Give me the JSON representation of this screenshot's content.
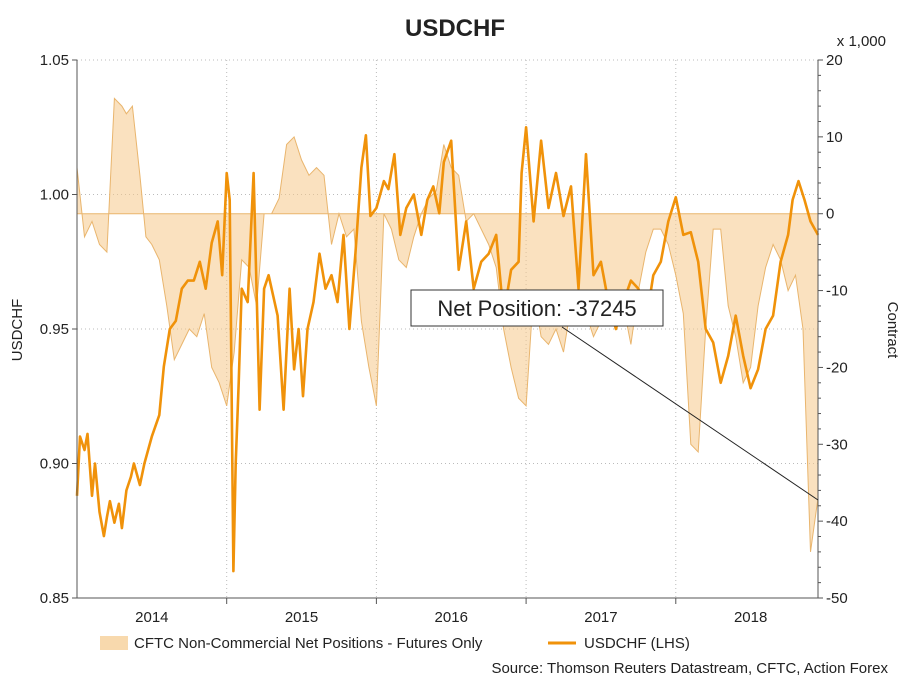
{
  "chart_data": {
    "type": "line",
    "title": "USDCHF",
    "left_axis": {
      "label": "USDCHF",
      "min": 0.85,
      "max": 1.05,
      "ticks": [
        "0.85",
        "0.90",
        "0.95",
        "1.00",
        "1.05"
      ],
      "tick_values": [
        0.85,
        0.9,
        0.95,
        1.0,
        1.05
      ]
    },
    "right_axis": {
      "label": "Contract",
      "unit_note": "x 1,000",
      "min": -50,
      "max": 20,
      "ticks": [
        "-50",
        "-40",
        "-30",
        "-20",
        "-10",
        "0",
        "10",
        "20"
      ],
      "tick_values": [
        -50,
        -40,
        -30,
        -20,
        -10,
        0,
        10,
        20
      ]
    },
    "x_axis": {
      "min": 2013.5,
      "max": 2018.45,
      "labels": [
        "2014",
        "2015",
        "2016",
        "2017",
        "2018"
      ],
      "label_positions": [
        2014.0,
        2015.0,
        2016.0,
        2017.0,
        2018.0
      ],
      "year_boundaries": [
        2014.5,
        2015.5,
        2016.5,
        2017.5
      ]
    },
    "grid": true,
    "legend_position": "bottom",
    "series": [
      {
        "name": "CFTC Non-Commercial Net Positions - Futures Only",
        "kind": "area",
        "axis": "right",
        "color": "#f5c98a",
        "x": [
          2013.5,
          2013.55,
          2013.6,
          2013.65,
          2013.7,
          2013.75,
          2013.8,
          2013.83,
          2013.87,
          2013.92,
          2013.96,
          2014.0,
          2014.05,
          2014.1,
          2014.15,
          2014.2,
          2014.25,
          2014.3,
          2014.35,
          2014.4,
          2014.45,
          2014.5,
          2014.55,
          2014.6,
          2014.65,
          2014.7,
          2014.75,
          2014.8,
          2014.85,
          2014.9,
          2014.95,
          2015.0,
          2015.05,
          2015.1,
          2015.15,
          2015.2,
          2015.25,
          2015.3,
          2015.35,
          2015.4,
          2015.45,
          2015.5,
          2015.55,
          2015.6,
          2015.65,
          2015.7,
          2015.75,
          2015.8,
          2015.85,
          2015.9,
          2015.95,
          2016.0,
          2016.05,
          2016.1,
          2016.15,
          2016.2,
          2016.25,
          2016.3,
          2016.35,
          2016.4,
          2016.45,
          2016.5,
          2016.55,
          2016.6,
          2016.65,
          2016.7,
          2016.75,
          2016.8,
          2016.85,
          2016.9,
          2016.95,
          2017.0,
          2017.05,
          2017.1,
          2017.15,
          2017.2,
          2017.25,
          2017.3,
          2017.35,
          2017.4,
          2017.45,
          2017.5,
          2017.55,
          2017.6,
          2017.65,
          2017.7,
          2017.75,
          2017.8,
          2017.85,
          2017.9,
          2017.95,
          2018.0,
          2018.05,
          2018.1,
          2018.15,
          2018.2,
          2018.25,
          2018.3,
          2018.35,
          2018.4,
          2018.45
        ],
        "values": [
          6,
          -3,
          -1,
          -4,
          -5,
          15,
          14,
          13,
          14,
          5,
          -3,
          -4,
          -6,
          -12,
          -19,
          -17,
          -15,
          -16,
          -13,
          -20,
          -22,
          -25,
          -18,
          -6,
          -7,
          -12,
          0,
          0,
          2,
          9,
          10,
          7,
          5,
          6,
          5,
          -4,
          0,
          -3,
          -2,
          -14,
          -20,
          -25,
          0,
          -2,
          -6,
          -7,
          -3,
          0,
          2,
          3,
          9,
          6,
          5,
          -1,
          0,
          -2,
          -4,
          -7,
          -15,
          -20,
          -24,
          -25,
          -10,
          -16,
          -17,
          -15,
          -18,
          -12,
          -10,
          -13,
          -16,
          -14,
          -11,
          -10,
          -12,
          -17,
          -10,
          -5,
          -2,
          -2,
          -4,
          -8,
          -13,
          -30,
          -31,
          -15,
          -2,
          -2,
          -12,
          -16,
          -22,
          -20,
          -12,
          -7,
          -4,
          -6,
          -10,
          -8,
          -15,
          -44,
          -37
        ]
      },
      {
        "name": "USDCHF (LHS)",
        "kind": "line",
        "axis": "left",
        "color": "#f0920a",
        "x": [
          2013.5,
          2013.52,
          2013.55,
          2013.57,
          2013.6,
          2013.62,
          2013.65,
          2013.68,
          2013.7,
          2013.72,
          2013.75,
          2013.78,
          2013.8,
          2013.83,
          2013.86,
          2013.88,
          2013.92,
          2013.95,
          2014.0,
          2014.05,
          2014.08,
          2014.12,
          2014.16,
          2014.2,
          2014.24,
          2014.28,
          2014.32,
          2014.36,
          2014.4,
          2014.44,
          2014.47,
          2014.5,
          2014.52,
          2014.545,
          2014.56,
          2014.58,
          2014.6,
          2014.64,
          2014.68,
          2014.72,
          2014.75,
          2014.78,
          2014.8,
          2014.84,
          2014.88,
          2014.92,
          2014.95,
          2014.98,
          2015.01,
          2015.04,
          2015.08,
          2015.12,
          2015.16,
          2015.2,
          2015.24,
          2015.28,
          2015.32,
          2015.36,
          2015.4,
          2015.43,
          2015.46,
          2015.5,
          2015.55,
          2015.58,
          2015.62,
          2015.66,
          2015.7,
          2015.75,
          2015.8,
          2015.84,
          2015.88,
          2015.92,
          2015.95,
          2016.0,
          2016.05,
          2016.1,
          2016.15,
          2016.2,
          2016.25,
          2016.3,
          2016.35,
          2016.4,
          2016.45,
          2016.47,
          2016.5,
          2016.55,
          2016.6,
          2016.65,
          2016.7,
          2016.75,
          2016.8,
          2016.85,
          2016.9,
          2016.95,
          2017.0,
          2017.05,
          2017.1,
          2017.15,
          2017.2,
          2017.25,
          2017.3,
          2017.35,
          2017.4,
          2017.45,
          2017.5,
          2017.55,
          2017.6,
          2017.65,
          2017.7,
          2017.75,
          2017.8,
          2017.85,
          2017.9,
          2017.95,
          2018.0,
          2018.05,
          2018.1,
          2018.15,
          2018.2,
          2018.25,
          2018.28,
          2018.32,
          2018.36,
          2018.4,
          2018.45
        ],
        "values": [
          0.888,
          0.91,
          0.905,
          0.911,
          0.888,
          0.9,
          0.882,
          0.873,
          0.88,
          0.886,
          0.878,
          0.885,
          0.876,
          0.89,
          0.895,
          0.9,
          0.892,
          0.9,
          0.91,
          0.918,
          0.936,
          0.95,
          0.953,
          0.965,
          0.968,
          0.968,
          0.975,
          0.965,
          0.982,
          0.99,
          0.97,
          1.008,
          0.998,
          0.86,
          0.9,
          0.93,
          0.965,
          0.96,
          1.008,
          0.92,
          0.965,
          0.97,
          0.965,
          0.955,
          0.92,
          0.965,
          0.935,
          0.95,
          0.925,
          0.95,
          0.96,
          0.978,
          0.965,
          0.97,
          0.96,
          0.985,
          0.95,
          0.978,
          1.01,
          1.022,
          0.992,
          0.995,
          1.005,
          1.002,
          1.015,
          0.985,
          0.995,
          1.0,
          0.985,
          0.998,
          1.003,
          0.993,
          1.012,
          1.02,
          0.972,
          0.99,
          0.965,
          0.975,
          0.978,
          0.985,
          0.955,
          0.972,
          0.975,
          1.008,
          1.025,
          0.99,
          1.02,
          0.995,
          1.008,
          0.992,
          1.003,
          0.965,
          1.015,
          0.97,
          0.975,
          0.96,
          0.95,
          0.96,
          0.968,
          0.965,
          0.952,
          0.97,
          0.975,
          0.99,
          0.999,
          0.985,
          0.986,
          0.975,
          0.95,
          0.945,
          0.93,
          0.94,
          0.955,
          0.94,
          0.928,
          0.935,
          0.95,
          0.955,
          0.975,
          0.985,
          0.998,
          1.005,
          0.998,
          0.99,
          0.985
        ]
      }
    ],
    "annotation": {
      "text": "Net Position: -37245"
    }
  },
  "footer": {
    "source": "Source: Thomson Reuters Datastream, CFTC, Action Forex"
  }
}
